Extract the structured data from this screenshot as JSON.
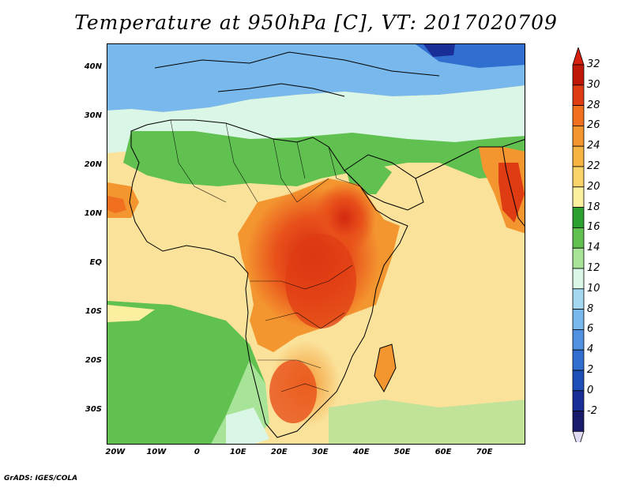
{
  "title": "Temperature at 950hPa [C], VT: 2017020709",
  "credit": "GrADS: IGES/COLA",
  "map": {
    "region": "Africa and surrounding oceans",
    "lon_range": [
      -22,
      80
    ],
    "lat_range": [
      -37,
      45
    ],
    "lat_labels": [
      {
        "lat": 40,
        "label": "40N"
      },
      {
        "lat": 30,
        "label": "30N"
      },
      {
        "lat": 20,
        "label": "20N"
      },
      {
        "lat": 10,
        "label": "10N"
      },
      {
        "lat": 0,
        "label": "EQ"
      },
      {
        "lat": -10,
        "label": "10S"
      },
      {
        "lat": -20,
        "label": "20S"
      },
      {
        "lat": -30,
        "label": "30S"
      }
    ],
    "lon_labels": [
      {
        "lon": -20,
        "label": "20W"
      },
      {
        "lon": -10,
        "label": "10W"
      },
      {
        "lon": 0,
        "label": "0"
      },
      {
        "lon": 10,
        "label": "10E"
      },
      {
        "lon": 20,
        "label": "20E"
      },
      {
        "lon": 30,
        "label": "30E"
      },
      {
        "lon": 40,
        "label": "40E"
      },
      {
        "lon": 50,
        "label": "50E"
      },
      {
        "lon": 60,
        "label": "60E"
      },
      {
        "lon": 70,
        "label": "70E"
      }
    ]
  },
  "colorbar": {
    "labels": [
      "32",
      "30",
      "28",
      "26",
      "24",
      "22",
      "20",
      "18",
      "16",
      "14",
      "12",
      "10",
      "8",
      "6",
      "4",
      "2",
      "0",
      "-2"
    ],
    "overflow_color": "#d82010",
    "underflow_color": "#e0dcf4",
    "colors": [
      "#c01808",
      "#e03c14",
      "#f07020",
      "#f49630",
      "#f8b440",
      "#fad468",
      "#fcf0a0",
      "#2ca030",
      "#60c050",
      "#a8e498",
      "#daf6e6",
      "#a4d8f0",
      "#78b8ec",
      "#5092e0",
      "#306ed0",
      "#1e50b8",
      "#1a2e98",
      "#1a1a6c"
    ]
  }
}
